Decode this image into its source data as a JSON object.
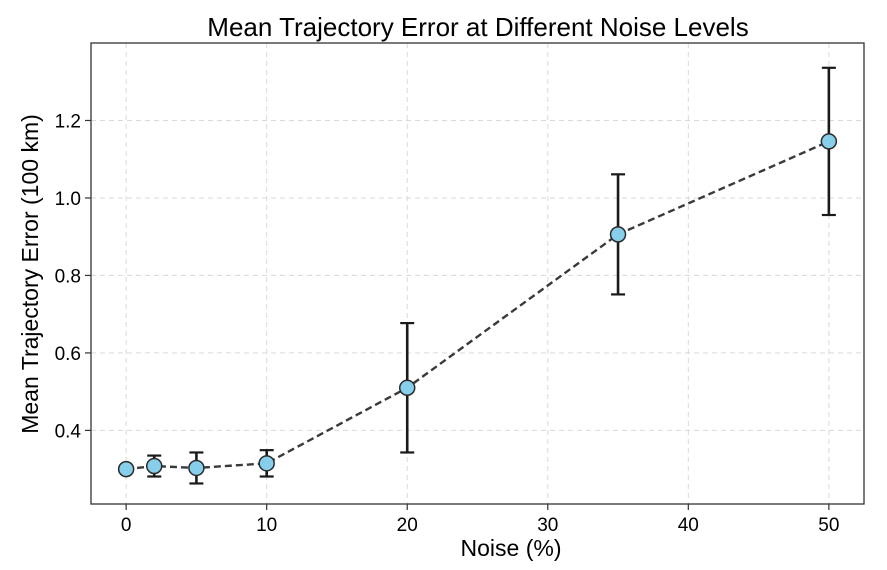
{
  "chart_data": {
    "type": "line",
    "title": "Mean Trajectory Error at Different Noise Levels",
    "xlabel": "Noise (%)",
    "ylabel": "Mean Trajectory Error (100 km)",
    "xlim": [
      -2.5,
      52.5
    ],
    "ylim": [
      0.21,
      1.4
    ],
    "x_ticks": [
      0,
      10,
      20,
      30,
      40,
      50
    ],
    "y_ticks": [
      0.4,
      0.6,
      0.8,
      1.0,
      1.2
    ],
    "grid": true,
    "series": [
      {
        "x": [
          0,
          2,
          5,
          10,
          20,
          35,
          50
        ],
        "y": [
          0.3,
          0.308,
          0.303,
          0.315,
          0.51,
          0.906,
          1.146
        ],
        "error": [
          0.0,
          0.027,
          0.04,
          0.034,
          0.167,
          0.155,
          0.19
        ],
        "marker_color": "#87ceeb",
        "line_color": "#3a3a3a"
      }
    ]
  }
}
